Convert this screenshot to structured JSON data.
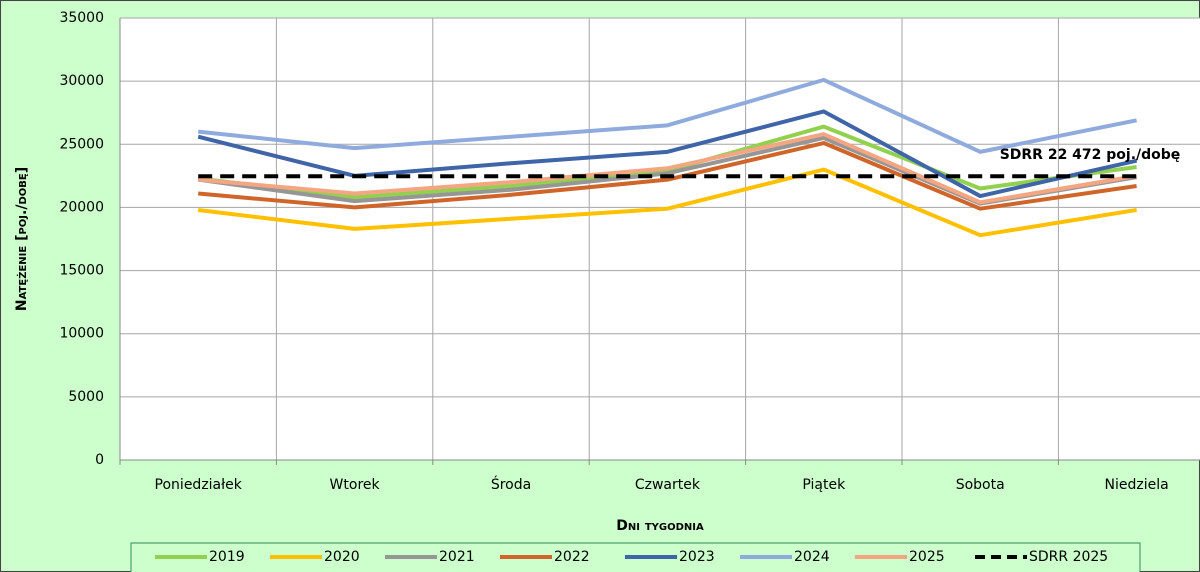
{
  "chart_data": {
    "type": "line",
    "x_title": "Dni tygodnia",
    "y_title": "Natężenie [poj./dobę]",
    "annotation": "SDRR 22 472 poj./dobę",
    "categories": [
      "Poniedziałek",
      "Wtorek",
      "Środa",
      "Czwartek",
      "Piątek",
      "Sobota",
      "Niedziela"
    ],
    "ylim": [
      0,
      35000
    ],
    "yticks": [
      0,
      5000,
      10000,
      15000,
      20000,
      25000,
      30000,
      35000
    ],
    "grid": true,
    "legend": "bottom",
    "series": [
      {
        "name": "2019",
        "color": "#92d050",
        "values": [
          22300,
          20800,
          21700,
          22900,
          26400,
          21500,
          23200
        ]
      },
      {
        "name": "2020",
        "color": "#ffc000",
        "values": [
          19800,
          18300,
          19100,
          19900,
          23000,
          17800,
          19800
        ]
      },
      {
        "name": "2021",
        "color": "#969696",
        "values": [
          22200,
          20500,
          21400,
          22700,
          25500,
          20300,
          22400
        ]
      },
      {
        "name": "2022",
        "color": "#d0652a",
        "values": [
          21100,
          20000,
          21000,
          22200,
          25100,
          19900,
          21700
        ]
      },
      {
        "name": "2023",
        "color": "#3f64a8",
        "values": [
          25600,
          22500,
          23500,
          24400,
          27600,
          20900,
          23700
        ]
      },
      {
        "name": "2024",
        "color": "#8faadc",
        "values": [
          26000,
          24700,
          25600,
          26500,
          30100,
          24400,
          26900
        ]
      },
      {
        "name": "2025",
        "color": "#f4a582",
        "values": [
          22200,
          21100,
          22000,
          23100,
          25800,
          20400,
          22500
        ]
      },
      {
        "name": "SDRR 2025",
        "color": "#000000",
        "dashed": true,
        "values": [
          22472,
          22472,
          22472,
          22472,
          22472,
          22472,
          22472
        ]
      }
    ]
  }
}
